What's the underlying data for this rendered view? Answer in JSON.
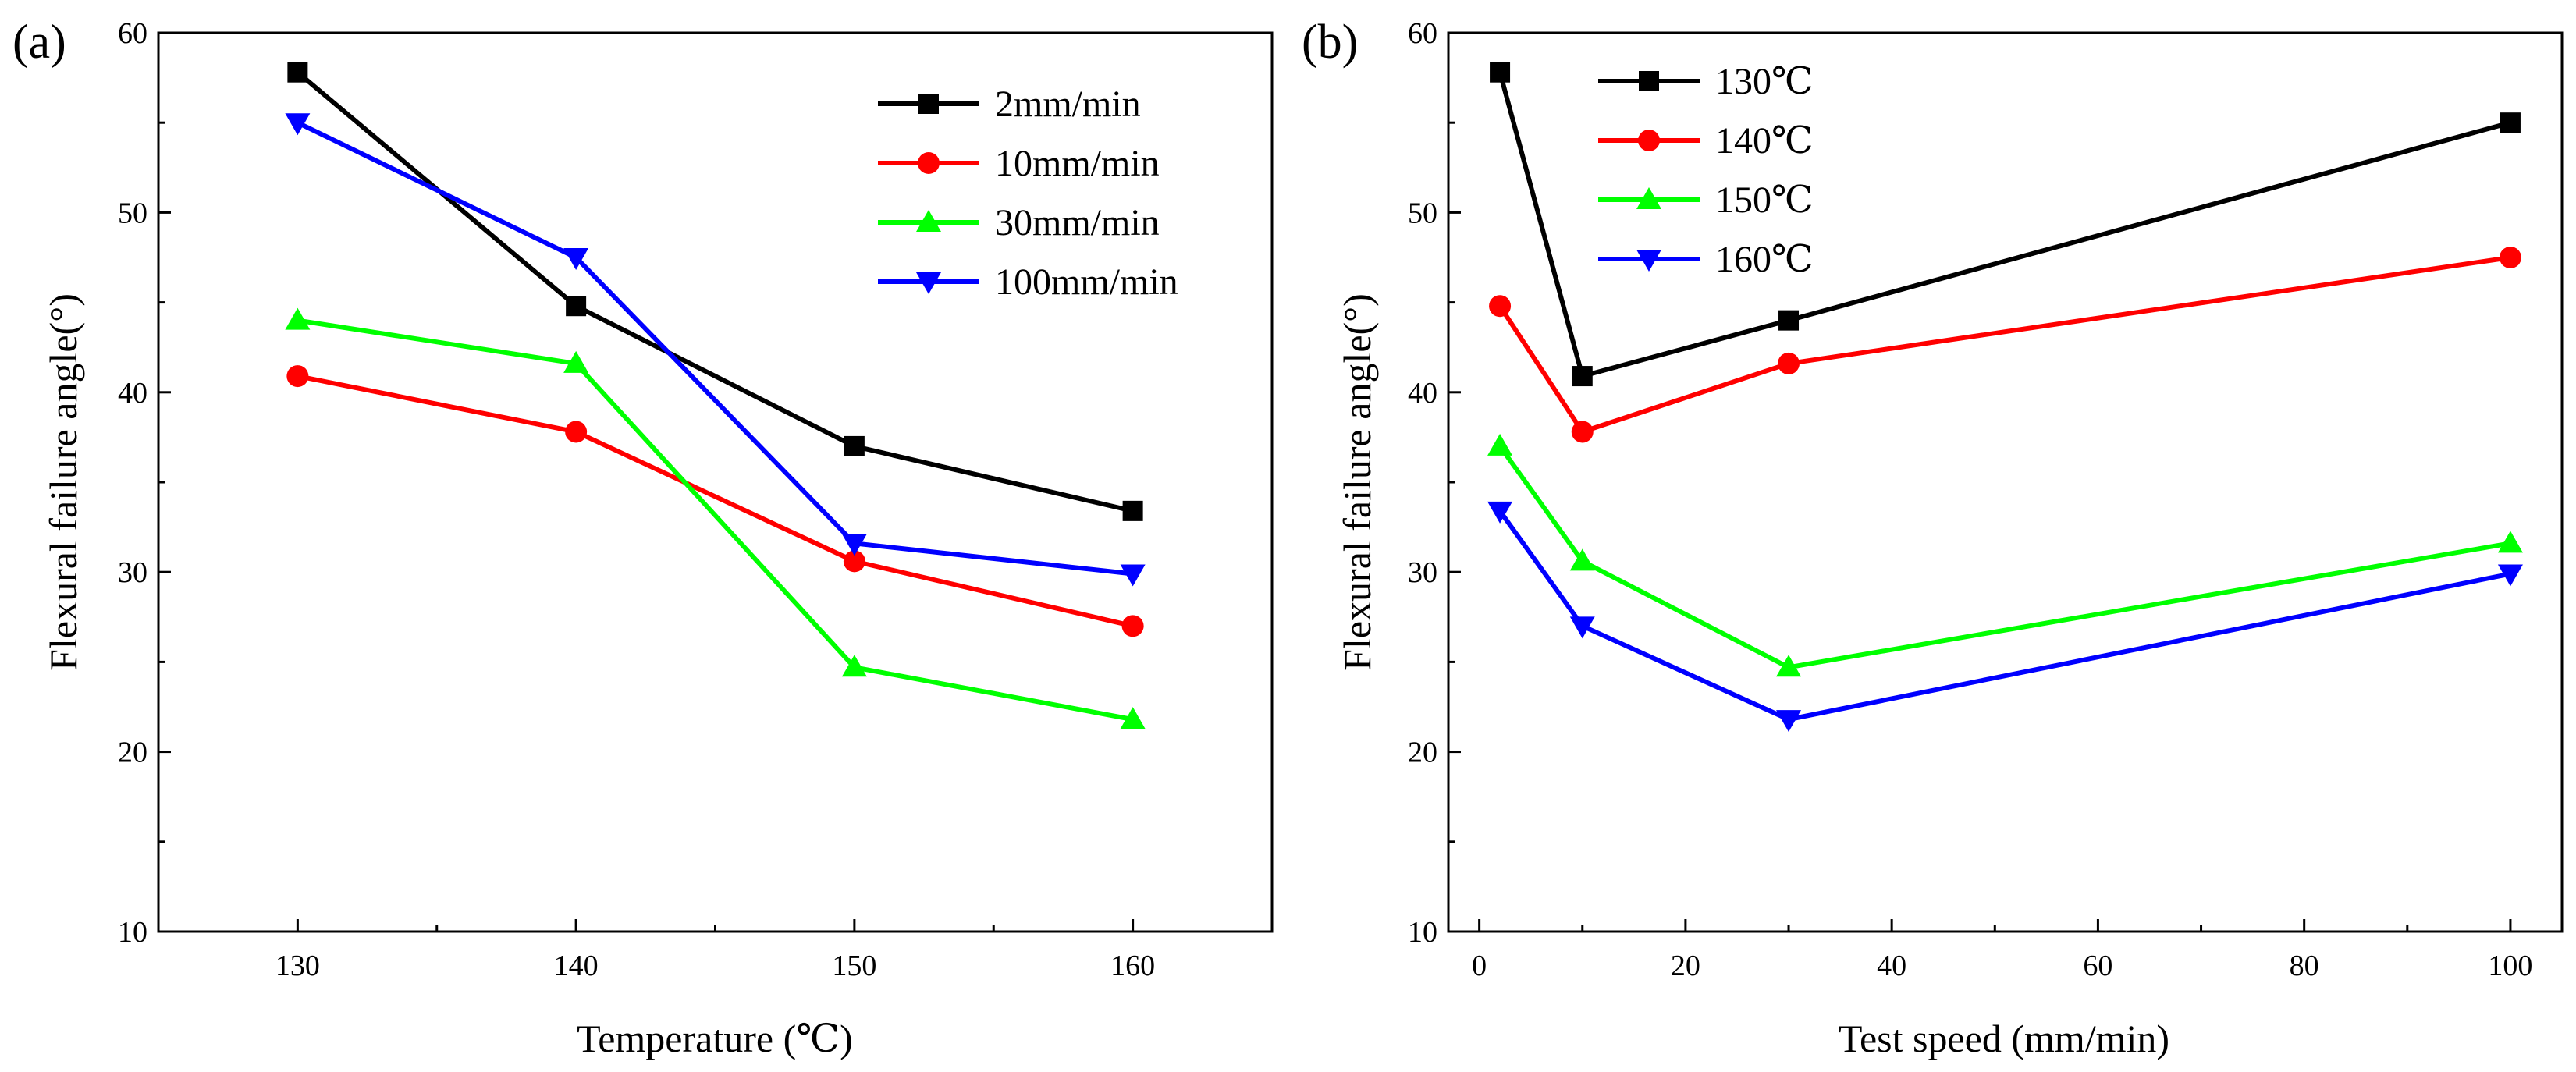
{
  "chart_data": [
    {
      "type": "line",
      "panel_label": "(a)",
      "title": "",
      "xlabel": "Temperature (℃)",
      "ylabel": "Flexural failure angle(°)",
      "xlim": [
        125,
        165
      ],
      "ylim": [
        10,
        60
      ],
      "x_ticks": [
        130,
        140,
        150,
        160
      ],
      "y_ticks": [
        10,
        20,
        30,
        40,
        50,
        60
      ],
      "x_tick_labels": [
        "130",
        "140",
        "150",
        "160"
      ],
      "y_tick_labels": [
        "10",
        "20",
        "30",
        "40",
        "50",
        "60"
      ],
      "grid": false,
      "legend_position": "top-right",
      "x": [
        130,
        140,
        150,
        160
      ],
      "series": [
        {
          "name": "2mm/min",
          "color": "#000000",
          "marker": "square",
          "values": [
            57.8,
            44.8,
            37.0,
            33.4
          ]
        },
        {
          "name": "10mm/min",
          "color": "#ff0000",
          "marker": "circle",
          "values": [
            40.9,
            37.8,
            30.6,
            27.0
          ]
        },
        {
          "name": "30mm/min",
          "color": "#00ff00",
          "marker": "triangle-up",
          "values": [
            44.0,
            41.6,
            24.7,
            21.8
          ]
        },
        {
          "name": "100mm/min",
          "color": "#0000ff",
          "marker": "triangle-down",
          "values": [
            55.0,
            47.5,
            31.6,
            29.9
          ]
        }
      ]
    },
    {
      "type": "line",
      "panel_label": "(b)",
      "title": "",
      "xlabel": "Test speed (mm/min)",
      "ylabel": "Flexural failure angle(°)",
      "xlim": [
        -3,
        105
      ],
      "ylim": [
        10,
        60
      ],
      "x_ticks": [
        0,
        20,
        40,
        60,
        80,
        100
      ],
      "y_ticks": [
        10,
        20,
        30,
        40,
        50,
        60
      ],
      "x_tick_labels": [
        "0",
        "20",
        "40",
        "60",
        "80",
        "100"
      ],
      "y_tick_labels": [
        "10",
        "20",
        "30",
        "40",
        "50",
        "60"
      ],
      "grid": false,
      "legend_position": "top-left",
      "x": [
        2,
        10,
        30,
        100
      ],
      "series": [
        {
          "name": "130℃",
          "color": "#000000",
          "marker": "square",
          "values": [
            57.8,
            40.9,
            44.0,
            55.0
          ]
        },
        {
          "name": "140℃",
          "color": "#ff0000",
          "marker": "circle",
          "values": [
            44.8,
            37.8,
            41.6,
            47.5
          ]
        },
        {
          "name": "150℃",
          "color": "#00ff00",
          "marker": "triangle-up",
          "values": [
            37.0,
            30.6,
            24.7,
            31.6
          ]
        },
        {
          "name": "160℃",
          "color": "#0000ff",
          "marker": "triangle-down",
          "values": [
            33.4,
            27.0,
            21.8,
            29.9
          ]
        }
      ]
    }
  ]
}
